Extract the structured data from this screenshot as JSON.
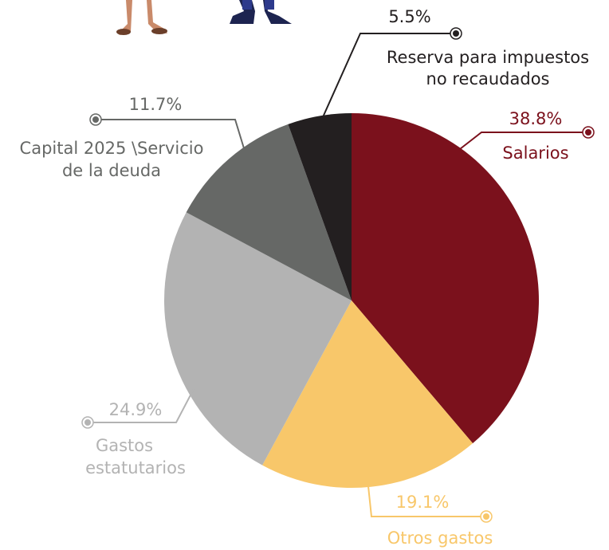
{
  "chart_data": {
    "type": "pie",
    "series": [
      {
        "name": [
          "Salarios"
        ],
        "color": "#7b111c",
        "values": [
          38.8
        ],
        "value_labels": [
          "38.8%"
        ]
      },
      {
        "name": [
          "Otros gastos"
        ],
        "color": "#f8c76a",
        "values": [
          19.1
        ],
        "value_labels": [
          "19.1%"
        ]
      },
      {
        "name": [
          "Gastos",
          "estatutarios"
        ],
        "color": "#b3b3b3",
        "values": [
          24.9
        ],
        "value_labels": [
          "24.9%"
        ]
      },
      {
        "name": [
          "Capital 2025 \\Servicio",
          "de la deuda"
        ],
        "color": "#666866",
        "values": [
          11.7
        ],
        "value_labels": [
          "11.7%"
        ]
      },
      {
        "name": [
          "Reserva para impuestos",
          "no recaudados"
        ],
        "color": "#231f20",
        "values": [
          5.5
        ],
        "value_labels": [
          "5.5%"
        ]
      }
    ]
  }
}
